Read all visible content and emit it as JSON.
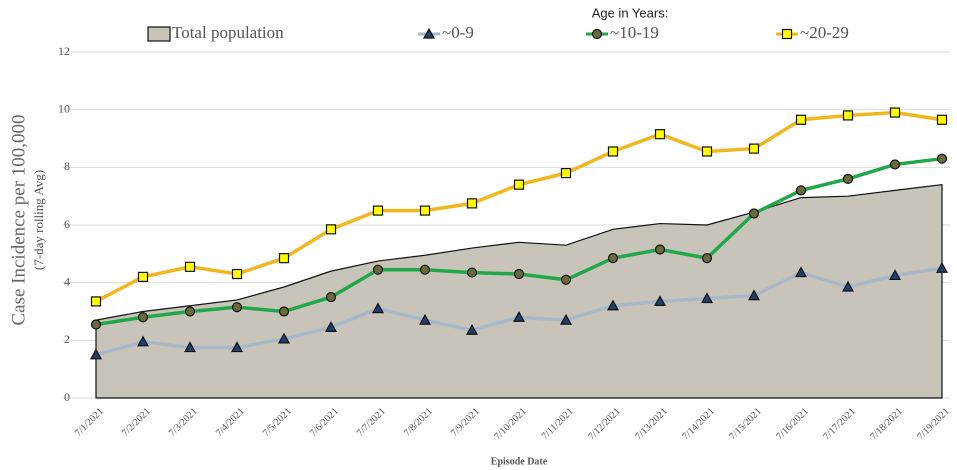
{
  "chart_data": {
    "type": "line",
    "legend_title": "Age in Years:",
    "ylabel": "Case Incidence per 100,000",
    "ylabel_note": "(7-day rolling Avg)",
    "xlabel": "Episode Date",
    "categories": [
      "7/1/2021",
      "7/2/2021",
      "7/3/2021",
      "7/4/2021",
      "7/5/2021",
      "7/6/2021",
      "7/7/2021",
      "7/8/2021",
      "7/9/2021",
      "7/10/2021",
      "7/11/2021",
      "7/12/2021",
      "7/13/2021",
      "7/14/2021",
      "7/15/2021",
      "7/16/2021",
      "7/17/2021",
      "7/18/2021",
      "7/19/2021"
    ],
    "ylim": [
      0,
      12
    ],
    "yticks": [
      0,
      2,
      4,
      6,
      8,
      10,
      12
    ],
    "grid": true,
    "series": [
      {
        "name": "Total population",
        "style": "area",
        "color": "#c9c4b9",
        "values": [
          2.7,
          3.0,
          3.2,
          3.4,
          3.85,
          4.4,
          4.75,
          4.95,
          5.2,
          5.4,
          5.3,
          5.85,
          6.05,
          6.0,
          6.45,
          6.95,
          7.0,
          7.2,
          7.4
        ]
      },
      {
        "name": "~0-9",
        "style": "line",
        "marker": "triangle",
        "color": "#a9b8c8",
        "marker_color": "#1f3f6e",
        "values": [
          1.5,
          1.95,
          1.75,
          1.75,
          2.05,
          2.45,
          3.1,
          2.7,
          2.35,
          2.8,
          2.7,
          3.2,
          3.35,
          3.45,
          3.55,
          4.35,
          3.85,
          4.25,
          4.5
        ]
      },
      {
        "name": "~10-19",
        "style": "line",
        "marker": "circle",
        "color": "#1fa84a",
        "marker_color": "#6b6a3c",
        "values": [
          2.55,
          2.8,
          3.0,
          3.15,
          3.0,
          3.5,
          4.45,
          4.45,
          4.35,
          4.3,
          4.1,
          4.85,
          5.15,
          4.85,
          6.4,
          7.2,
          7.6,
          8.1,
          8.3
        ]
      },
      {
        "name": "~20-29",
        "style": "line",
        "marker": "square",
        "color": "#f2b71e",
        "marker_color": "#ffff00",
        "values": [
          3.35,
          4.2,
          4.55,
          4.3,
          4.85,
          5.85,
          6.5,
          6.5,
          6.75,
          7.4,
          7.8,
          8.55,
          9.15,
          8.55,
          8.65,
          9.65,
          9.8,
          9.9,
          9.65
        ]
      }
    ]
  }
}
